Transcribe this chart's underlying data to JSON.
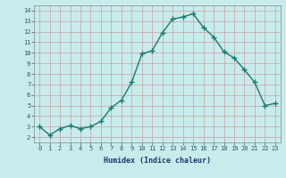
{
  "x": [
    0,
    1,
    2,
    3,
    4,
    5,
    6,
    7,
    8,
    9,
    10,
    11,
    12,
    13,
    14,
    15,
    16,
    17,
    18,
    19,
    20,
    21,
    22,
    23
  ],
  "y": [
    3.0,
    2.2,
    2.8,
    3.1,
    2.8,
    3.0,
    3.5,
    4.8,
    5.5,
    7.2,
    9.9,
    10.2,
    11.9,
    13.2,
    13.4,
    13.7,
    12.4,
    11.5,
    10.1,
    9.5,
    8.4,
    7.2,
    5.0,
    5.2
  ],
  "line_color": "#1a7a6e",
  "marker": "+",
  "markersize": 4,
  "linewidth": 1.0,
  "bg_color": "#c8ecec",
  "grid_color": "#c8a0a0",
  "xlabel": "Humidex (Indice chaleur)",
  "xlim": [
    -0.5,
    23.5
  ],
  "ylim": [
    1.5,
    14.5
  ],
  "yticks": [
    2,
    3,
    4,
    5,
    6,
    7,
    8,
    9,
    10,
    11,
    12,
    13,
    14
  ],
  "xticks": [
    0,
    1,
    2,
    3,
    4,
    5,
    6,
    7,
    8,
    9,
    10,
    11,
    12,
    13,
    14,
    15,
    16,
    17,
    18,
    19,
    20,
    21,
    22,
    23
  ],
  "xlabel_color": "#1a3a6e",
  "tick_color": "#2a5a5a",
  "tick_fontsize": 5.0,
  "xlabel_fontsize": 6.0
}
